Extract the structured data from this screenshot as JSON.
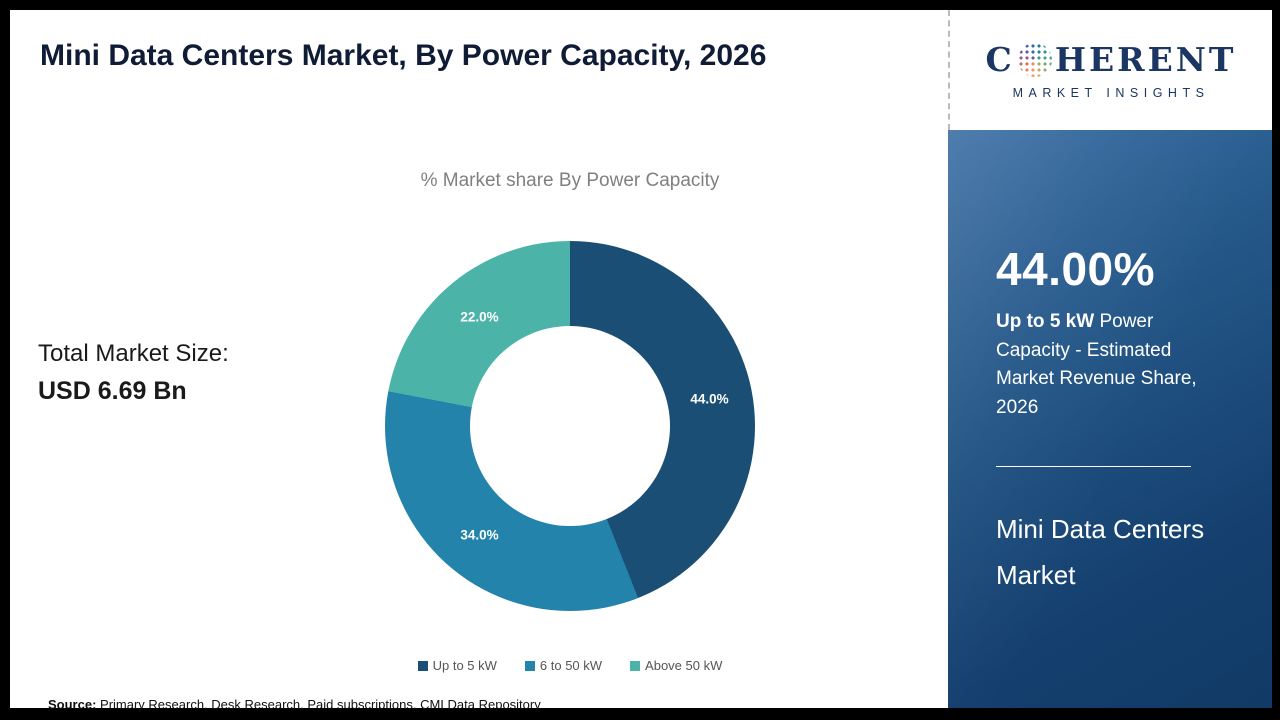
{
  "header": {
    "title": "Mini Data Centers Market, By Power Capacity, 2026"
  },
  "logo": {
    "letter_c": "C",
    "word_rest": "HERENT",
    "tagline": "MARKET INSIGHTS"
  },
  "main": {
    "chart_subtitle": "% Market share By Power Capacity",
    "total_market_label": "Total Market Size:",
    "total_market_value": "USD 6.69 Bn",
    "source_label": "Source:",
    "source_text": " Primary Research, Desk Research, Paid subscriptions, CMI Data Repository"
  },
  "sidebar": {
    "stat_value": "44.00%",
    "stat_highlight": "Up to 5 kW",
    "stat_text": " Power Capacity - Estimated Market Revenue Share, 2026",
    "market_name": "Mini Data Centers Market"
  },
  "chart_data": {
    "type": "pie",
    "donut": true,
    "title": "% Market share By Power Capacity",
    "categories": [
      "Up to 5 kW",
      "6 to 50 kW",
      "Above 50 kW"
    ],
    "values": [
      44.0,
      34.0,
      22.0
    ],
    "labels": [
      "44.0%",
      "34.0%",
      "22.0%"
    ],
    "colors": [
      "#1b4e74",
      "#2383ab",
      "#4cb3a9"
    ],
    "legend_position": "bottom",
    "start_angle_deg": 0,
    "direction": "clockwise"
  }
}
